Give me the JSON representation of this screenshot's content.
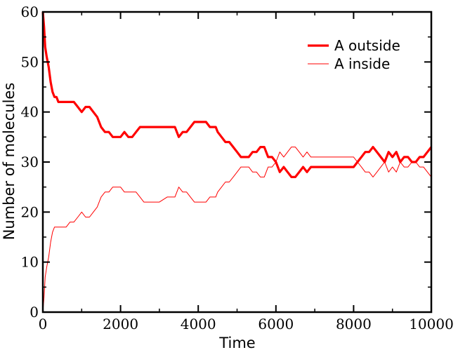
{
  "chart_data": {
    "type": "line",
    "title": "",
    "xlabel": "Time",
    "ylabel": "Number of molecules",
    "xlim": [
      0,
      10000
    ],
    "ylim": [
      0,
      60
    ],
    "xticks": [
      0,
      2000,
      4000,
      6000,
      8000,
      10000
    ],
    "yticks": [
      0,
      10,
      20,
      30,
      40,
      50,
      60
    ],
    "xtick_labels": [
      "0",
      "2000",
      "4000",
      "6000",
      "8000",
      "10000"
    ],
    "ytick_labels": [
      "0",
      "10",
      "20",
      "30",
      "40",
      "50",
      "60"
    ],
    "grid": false,
    "legend_position": "top-right",
    "series": [
      {
        "name": "A outside",
        "color": "#ff0000",
        "style": "thick",
        "x": [
          0,
          30,
          60,
          100,
          150,
          200,
          250,
          300,
          350,
          400,
          500,
          600,
          700,
          800,
          900,
          1000,
          1100,
          1200,
          1300,
          1400,
          1500,
          1600,
          1700,
          1800,
          1900,
          2000,
          2100,
          2200,
          2300,
          2400,
          2500,
          2600,
          2800,
          3000,
          3200,
          3400,
          3500,
          3600,
          3700,
          3800,
          3900,
          4000,
          4100,
          4200,
          4300,
          4400,
          4450,
          4500,
          4600,
          4700,
          4800,
          4900,
          5000,
          5100,
          5200,
          5300,
          5400,
          5500,
          5600,
          5700,
          5800,
          5900,
          6000,
          6100,
          6200,
          6300,
          6400,
          6500,
          6600,
          6700,
          6800,
          6900,
          7000,
          7200,
          7400,
          7600,
          7800,
          8000,
          8100,
          8200,
          8300,
          8400,
          8500,
          8600,
          8700,
          8800,
          8900,
          9000,
          9100,
          9200,
          9300,
          9400,
          9500,
          9600,
          9700,
          9800,
          9900,
          10000
        ],
        "y": [
          60,
          57,
          53,
          51,
          49,
          46,
          44,
          43,
          43,
          42,
          42,
          42,
          42,
          42,
          41,
          40,
          41,
          41,
          40,
          39,
          37,
          36,
          36,
          35,
          35,
          35,
          36,
          35,
          35,
          36,
          37,
          37,
          37,
          37,
          37,
          37,
          35,
          36,
          36,
          37,
          38,
          38,
          38,
          38,
          37,
          37,
          37,
          36,
          35,
          34,
          34,
          33,
          32,
          31,
          31,
          31,
          32,
          32,
          33,
          33,
          31,
          31,
          30,
          28,
          29,
          28,
          27,
          27,
          28,
          29,
          28,
          29,
          29,
          29,
          29,
          29,
          29,
          29,
          30,
          31,
          32,
          32,
          33,
          32,
          31,
          30,
          32,
          31,
          32,
          30,
          31,
          31,
          30,
          30,
          31,
          31,
          32,
          33
        ]
      },
      {
        "name": "A inside",
        "color": "#ff0000",
        "style": "thin",
        "x": [
          0,
          30,
          60,
          100,
          150,
          200,
          250,
          300,
          350,
          400,
          500,
          600,
          700,
          800,
          900,
          1000,
          1100,
          1200,
          1300,
          1400,
          1500,
          1600,
          1700,
          1800,
          1900,
          2000,
          2100,
          2200,
          2300,
          2400,
          2500,
          2600,
          2800,
          3000,
          3200,
          3400,
          3500,
          3600,
          3700,
          3800,
          3900,
          4000,
          4100,
          4200,
          4300,
          4400,
          4450,
          4500,
          4600,
          4700,
          4800,
          4900,
          5000,
          5100,
          5200,
          5300,
          5400,
          5500,
          5600,
          5700,
          5800,
          5900,
          6000,
          6100,
          6200,
          6300,
          6400,
          6500,
          6600,
          6700,
          6800,
          6900,
          7000,
          7200,
          7400,
          7600,
          7800,
          8000,
          8100,
          8200,
          8300,
          8400,
          8500,
          8600,
          8700,
          8800,
          8900,
          9000,
          9100,
          9200,
          9300,
          9400,
          9500,
          9600,
          9700,
          9800,
          9900,
          10000
        ],
        "y": [
          0,
          3,
          7,
          9,
          11,
          14,
          16,
          17,
          17,
          17,
          17,
          17,
          18,
          18,
          19,
          20,
          19,
          19,
          20,
          21,
          23,
          24,
          24,
          25,
          25,
          25,
          24,
          24,
          24,
          24,
          23,
          22,
          22,
          22,
          23,
          23,
          25,
          24,
          24,
          23,
          22,
          22,
          22,
          22,
          23,
          23,
          23,
          24,
          25,
          26,
          26,
          27,
          28,
          29,
          29,
          29,
          28,
          28,
          27,
          27,
          29,
          29,
          30,
          32,
          31,
          32,
          33,
          33,
          32,
          31,
          32,
          31,
          31,
          31,
          31,
          31,
          31,
          31,
          30,
          29,
          28,
          28,
          27,
          28,
          29,
          30,
          28,
          29,
          28,
          30,
          29,
          29,
          30,
          30,
          29,
          29,
          28,
          27
        ]
      }
    ]
  }
}
